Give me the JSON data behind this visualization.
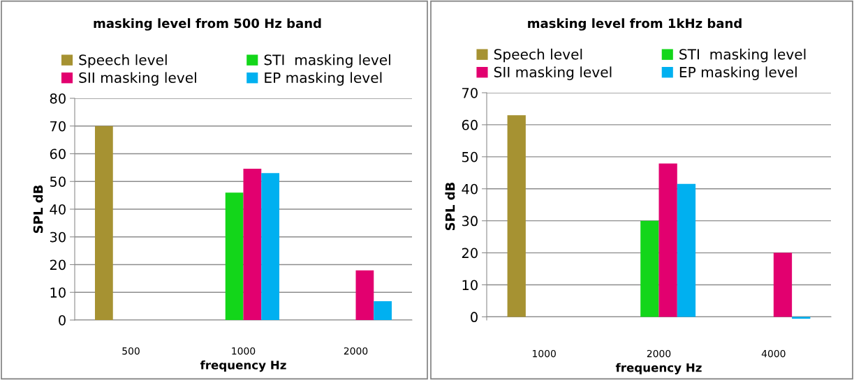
{
  "chart_data": [
    {
      "type": "bar",
      "title": "masking level from 500 Hz band",
      "xlabel": "frequency Hz",
      "ylabel": "SPL dB",
      "categories": [
        "500",
        "1000",
        "2000"
      ],
      "series": [
        {
          "name": "Speech level",
          "color": "#a69232",
          "values": [
            70,
            null,
            null
          ]
        },
        {
          "name": "STI  masking level",
          "color": "#13d61a",
          "values": [
            null,
            46,
            null
          ]
        },
        {
          "name": "SII masking level",
          "color": "#e2006f",
          "values": [
            null,
            54.6,
            17.9
          ]
        },
        {
          "name": "EP masking level",
          "color": "#00b0f0",
          "values": [
            null,
            53,
            6.8
          ]
        }
      ],
      "ylim": [
        0,
        80
      ],
      "yticks": [
        0,
        10,
        20,
        30,
        40,
        50,
        60,
        70,
        80
      ],
      "grid": "y",
      "legend": "top"
    },
    {
      "type": "bar",
      "title": "masking level from 1kHz band",
      "xlabel": "frequency Hz",
      "ylabel": "SPL dB",
      "categories": [
        "1000",
        "2000",
        "4000"
      ],
      "series": [
        {
          "name": "Speech level",
          "color": "#a69232",
          "values": [
            63,
            null,
            null
          ]
        },
        {
          "name": "STI  masking level",
          "color": "#13d61a",
          "values": [
            null,
            30,
            null
          ]
        },
        {
          "name": "SII masking level",
          "color": "#e2006f",
          "values": [
            null,
            47.9,
            20
          ]
        },
        {
          "name": "EP masking level",
          "color": "#00b0f0",
          "values": [
            null,
            41.5,
            -0.6
          ]
        }
      ],
      "ylim": [
        -1,
        70
      ],
      "yticks": [
        0,
        10,
        20,
        30,
        40,
        50,
        60,
        70
      ],
      "grid": "y",
      "legend": "top"
    }
  ]
}
